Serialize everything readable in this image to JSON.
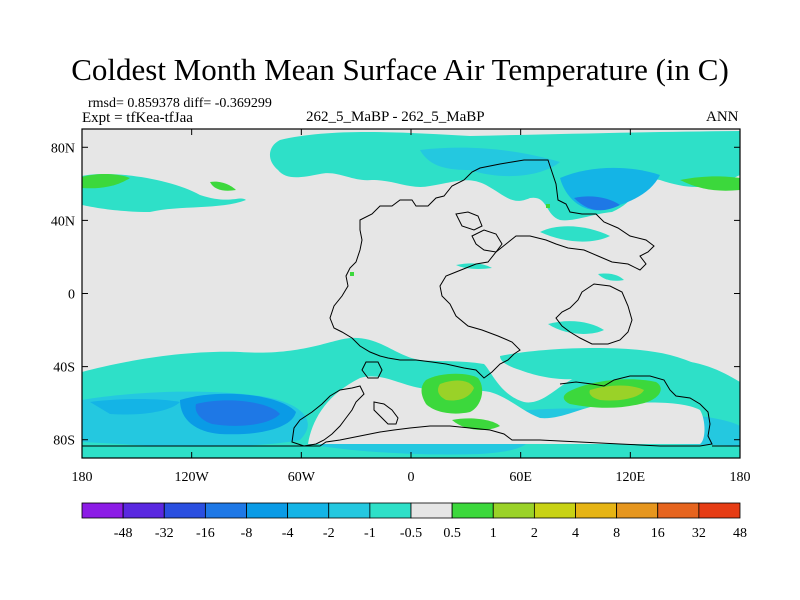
{
  "header": {
    "title": "Coldest Month Mean Surface Air Temperature (in C)",
    "stats": "rmsd= 0.859378 diff= -0.369299",
    "expt": "Expt = tfKea-tfJaa",
    "runs": "262_5_MaBP - 262_5_MaBP",
    "season": "ANN"
  },
  "map": {
    "projection": "cylindrical-equidistant",
    "lon_range": [
      -180,
      180
    ],
    "lat_range": [
      -90,
      90
    ],
    "x_ticks": [
      {
        "value": -180,
        "label": "180"
      },
      {
        "value": -120,
        "label": "120W"
      },
      {
        "value": -60,
        "label": "60W"
      },
      {
        "value": 0,
        "label": "0"
      },
      {
        "value": 60,
        "label": "60E"
      },
      {
        "value": 120,
        "label": "120E"
      },
      {
        "value": 180,
        "label": "180"
      }
    ],
    "y_ticks": [
      {
        "value": 80,
        "label": "80N"
      },
      {
        "value": 40,
        "label": "40N"
      },
      {
        "value": 0,
        "label": "0"
      },
      {
        "value": -40,
        "label": "40S"
      },
      {
        "value": -80,
        "label": "80S"
      }
    ]
  },
  "colorbar": {
    "colors": [
      "#8c1ce6",
      "#5a28e0",
      "#2a4fe0",
      "#1e78e6",
      "#0a9be6",
      "#14b4e6",
      "#24c8e0",
      "#2ee0c8",
      "#e6e6e6",
      "#3cd83c",
      "#9ad228",
      "#c8d214",
      "#e6b414",
      "#e6961e",
      "#e6641e",
      "#e63c14"
    ],
    "labels": [
      "-48",
      "-32",
      "-16",
      "-8",
      "-4",
      "-2",
      "-1",
      "-0.5",
      "0.5",
      "1",
      "2",
      "4",
      "8",
      "16",
      "32",
      "48"
    ]
  }
}
